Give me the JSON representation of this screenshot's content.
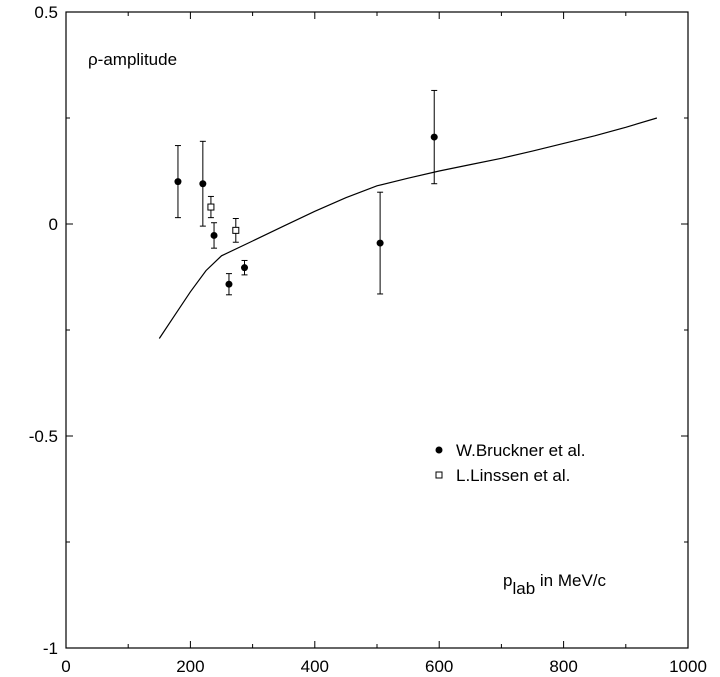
{
  "chart_data": {
    "type": "scatter",
    "title": "",
    "annotation": "ρ-amplitude",
    "xlabel": {
      "main": "p",
      "sub": "lab",
      "rest": " in MeV/c"
    },
    "ylabel": "",
    "xlim": [
      0,
      1000
    ],
    "ylim": [
      -1,
      0.5
    ],
    "x_ticks": [
      "0",
      "200",
      "400",
      "600",
      "800",
      "1000"
    ],
    "y_ticks": [
      "0.5",
      "0",
      "-0.5",
      "-1"
    ],
    "legend_position": "lower-right",
    "series": [
      {
        "name": "W.Bruckner et al.",
        "marker": "filled-circle",
        "points": [
          {
            "x": 180,
            "y": 0.1,
            "err": 0.085
          },
          {
            "x": 220,
            "y": 0.095,
            "err": 0.1
          },
          {
            "x": 238,
            "y": -0.027,
            "err": 0.03
          },
          {
            "x": 262,
            "y": -0.142,
            "err": 0.025
          },
          {
            "x": 287,
            "y": -0.103,
            "err": 0.017
          },
          {
            "x": 505,
            "y": -0.045,
            "err": 0.12
          },
          {
            "x": 592,
            "y": 0.205,
            "err": 0.11
          }
        ]
      },
      {
        "name": "L.Linssen et al.",
        "marker": "open-square",
        "points": [
          {
            "x": 233,
            "y": 0.04,
            "err": 0.025
          },
          {
            "x": 273,
            "y": -0.015,
            "err": 0.028
          }
        ]
      },
      {
        "marker": "line",
        "points": [
          {
            "x": 150,
            "y": -0.27
          },
          {
            "x": 175,
            "y": -0.215
          },
          {
            "x": 200,
            "y": -0.16
          },
          {
            "x": 225,
            "y": -0.11
          },
          {
            "x": 250,
            "y": -0.075
          },
          {
            "x": 300,
            "y": -0.04
          },
          {
            "x": 350,
            "y": -0.005
          },
          {
            "x": 400,
            "y": 0.03
          },
          {
            "x": 450,
            "y": 0.062
          },
          {
            "x": 500,
            "y": 0.09
          },
          {
            "x": 550,
            "y": 0.108
          },
          {
            "x": 600,
            "y": 0.125
          },
          {
            "x": 650,
            "y": 0.14
          },
          {
            "x": 700,
            "y": 0.155
          },
          {
            "x": 750,
            "y": 0.172
          },
          {
            "x": 800,
            "y": 0.19
          },
          {
            "x": 850,
            "y": 0.208
          },
          {
            "x": 900,
            "y": 0.228
          },
          {
            "x": 950,
            "y": 0.25
          }
        ]
      }
    ]
  }
}
